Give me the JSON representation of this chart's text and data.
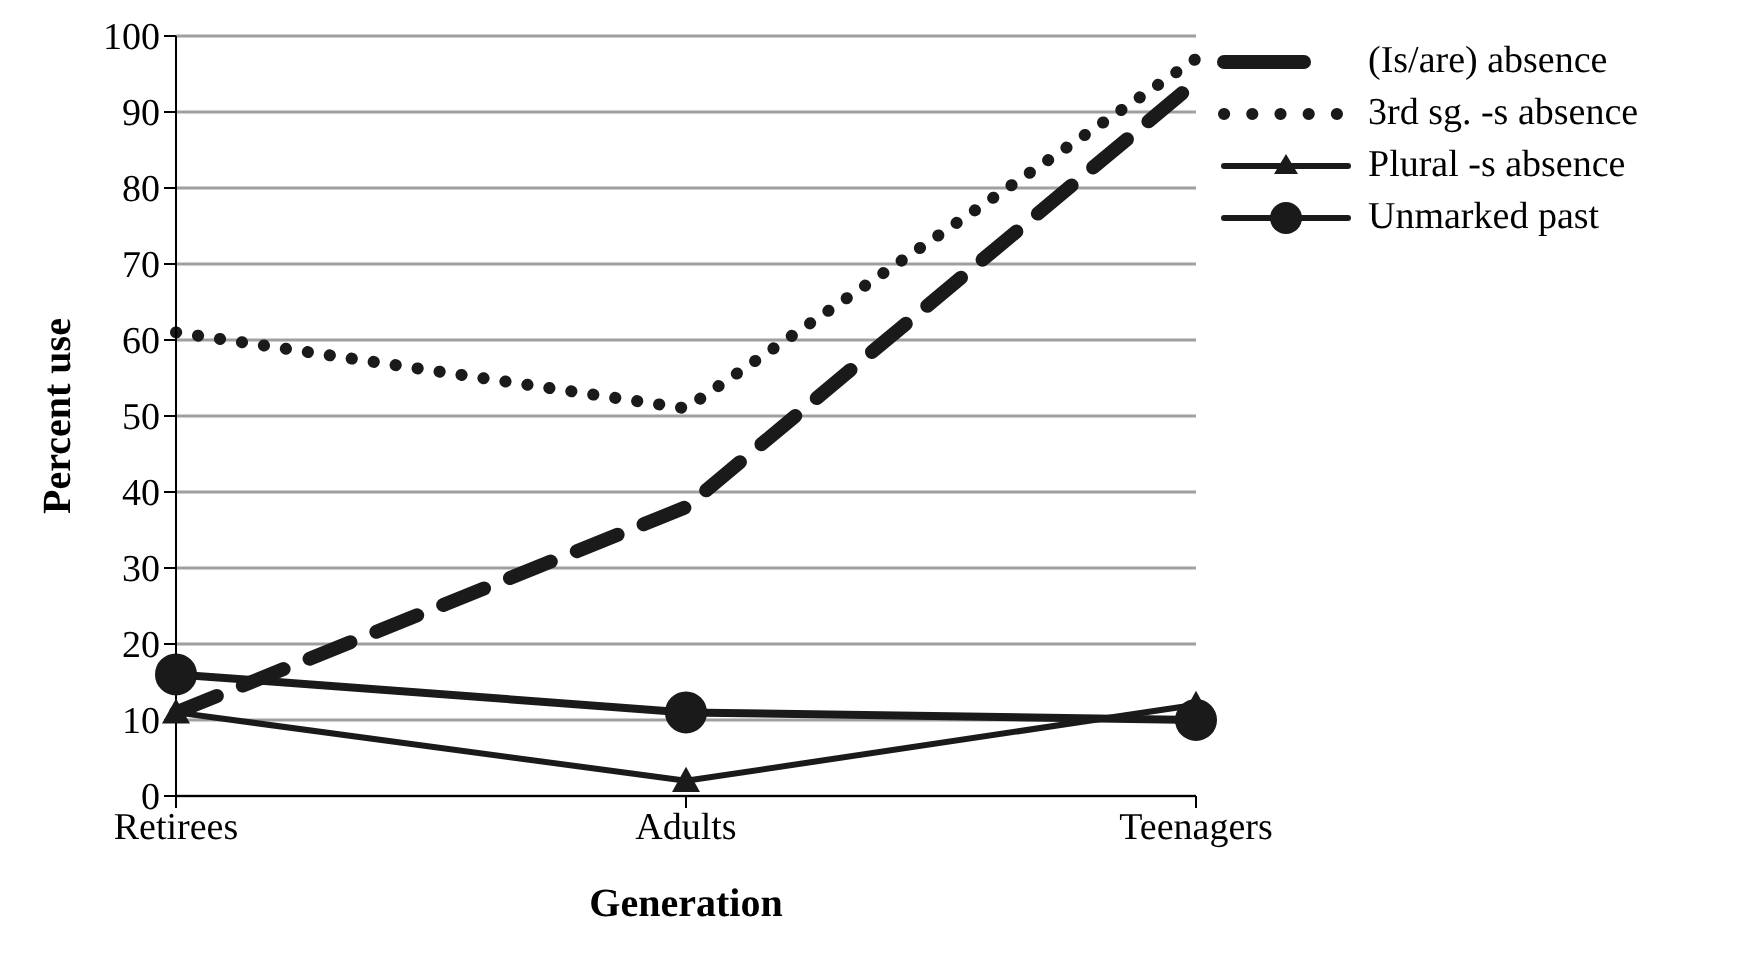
{
  "chart_data": {
    "type": "line",
    "xlabel": "Generation",
    "ylabel": "Percent use",
    "categories": [
      "Retirees",
      "Adults",
      "Teenagers"
    ],
    "series": [
      {
        "name": "(Is/are) absence",
        "color": "#1a1a1a",
        "values": [
          11,
          38,
          94
        ],
        "line_style": "dashed",
        "marker": "none"
      },
      {
        "name": "3rd sg. -s absence",
        "color": "#1a1a1a",
        "values": [
          61,
          51,
          97
        ],
        "line_style": "dotted",
        "marker": "none"
      },
      {
        "name": "Plural -s absence",
        "color": "#1a1a1a",
        "values": [
          11,
          2,
          12
        ],
        "line_style": "solid",
        "marker": "triangle"
      },
      {
        "name": "Unmarked past",
        "color": "#1a1a1a",
        "values": [
          16,
          11,
          10
        ],
        "line_style": "solid",
        "marker": "circle"
      }
    ],
    "ylim": [
      0,
      100
    ],
    "yticks": [
      0,
      10,
      20,
      30,
      40,
      50,
      60,
      70,
      80,
      90,
      100
    ],
    "grid": "y",
    "legend": "right"
  }
}
